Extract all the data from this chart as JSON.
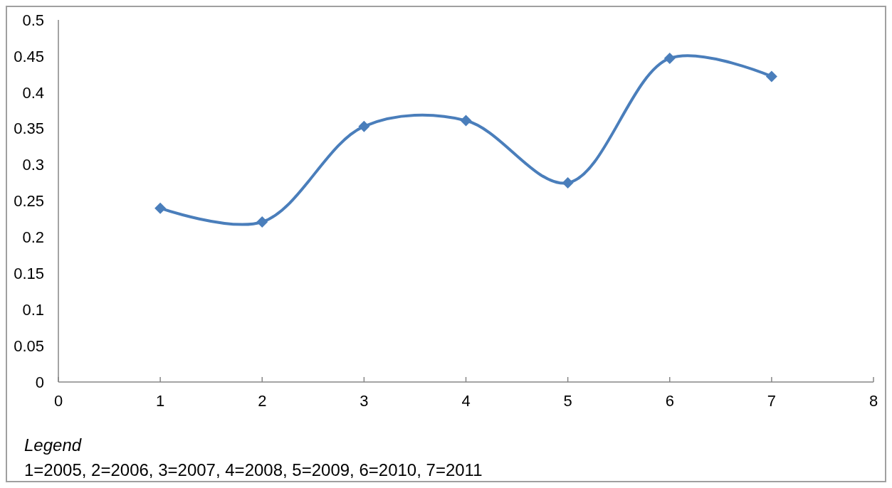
{
  "chart_data": {
    "type": "line",
    "x": [
      1,
      2,
      3,
      4,
      5,
      6,
      7
    ],
    "series": [
      {
        "color": "#4a7ebb",
        "values": [
          0.24,
          0.221,
          0.353,
          0.361,
          0.275,
          0.447,
          0.422
        ]
      }
    ],
    "xlim": [
      0,
      8
    ],
    "xticks": [
      0,
      1,
      2,
      3,
      4,
      5,
      6,
      7,
      8
    ],
    "ylim": [
      0,
      0.5
    ],
    "yticks": [
      0,
      0.05,
      0.1,
      0.15,
      0.2,
      0.25,
      0.3,
      0.35,
      0.4,
      0.45,
      0.5
    ],
    "marker": "diamond",
    "line_style": "solid",
    "grid": false,
    "annotations": [
      "Legend",
      "1=2005, 2=2006, 3=2007, 4=2008, 5=2009, 6=2010, 7=2011"
    ]
  }
}
